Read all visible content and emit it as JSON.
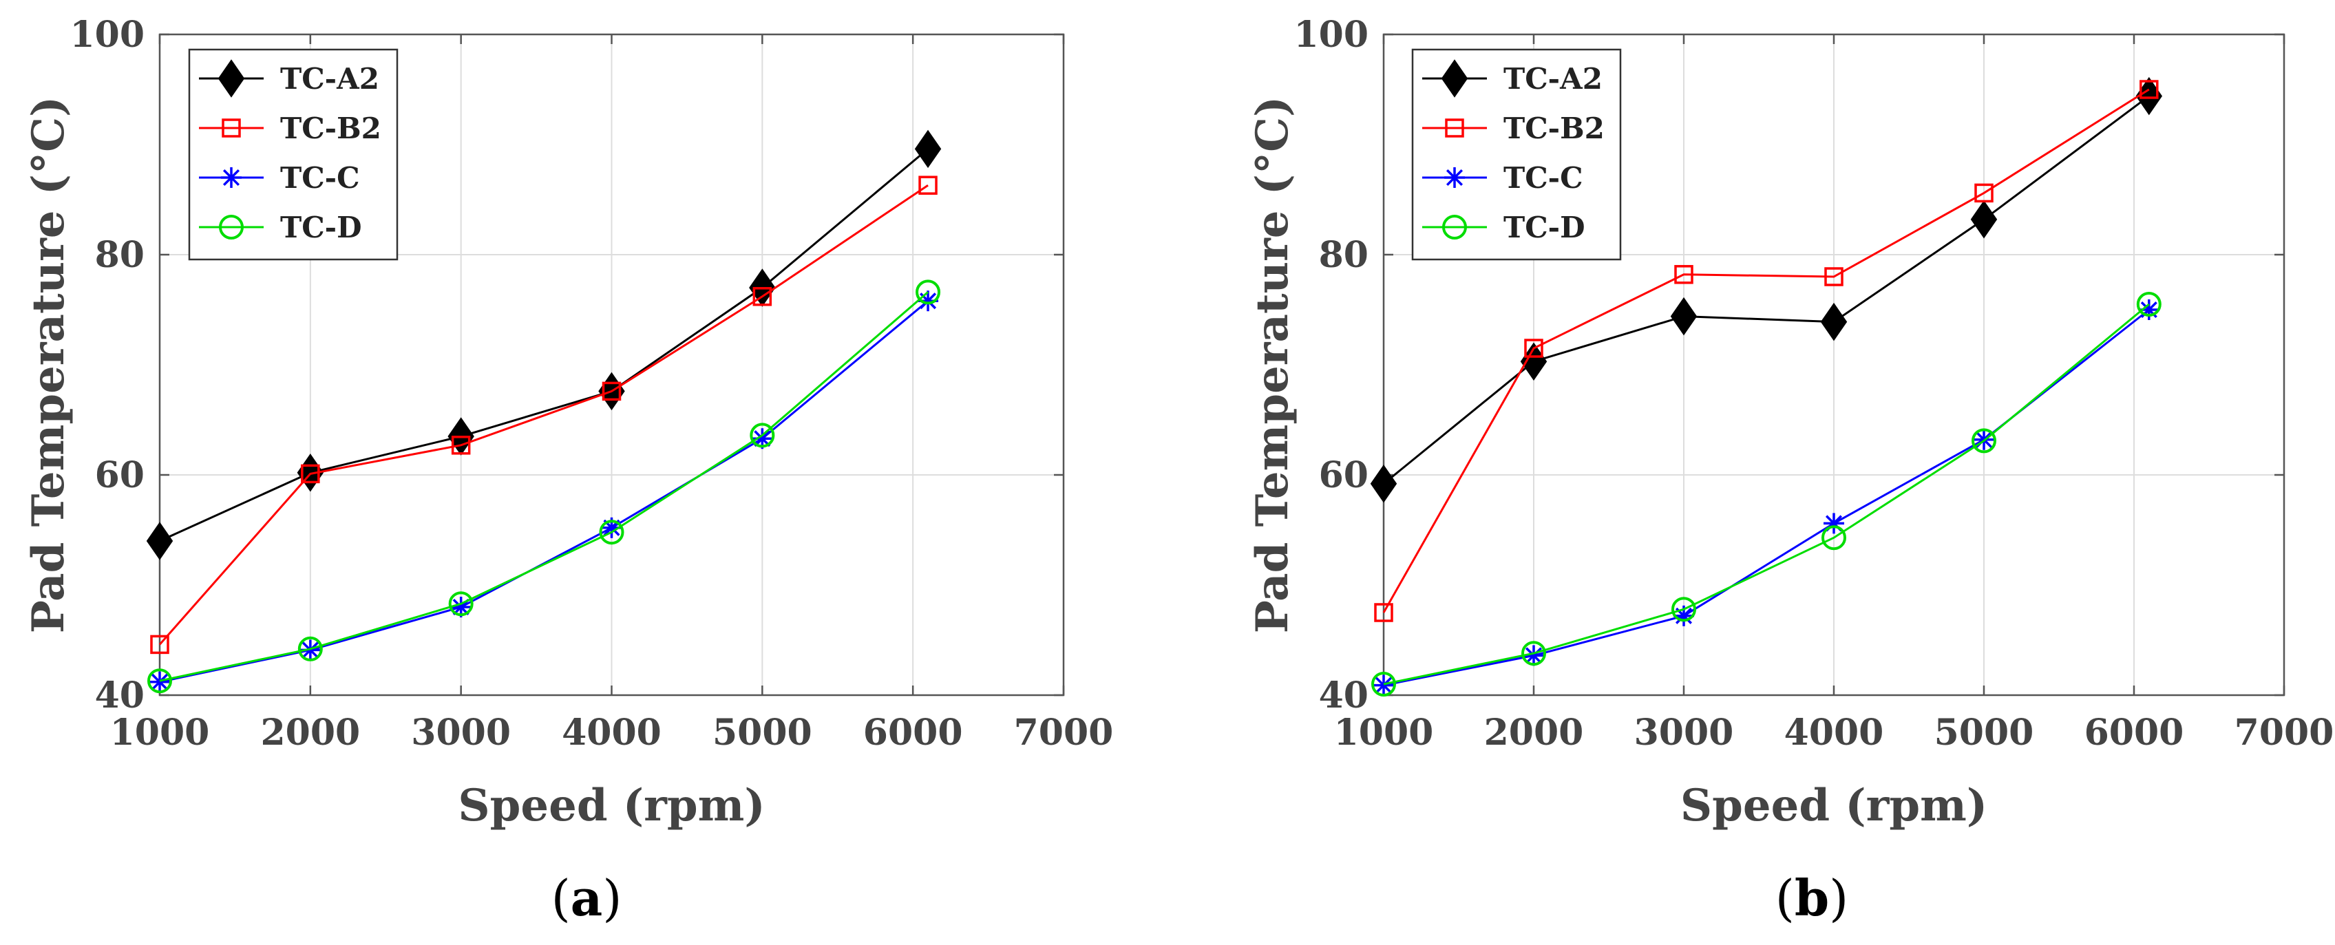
{
  "figure": {
    "captions": [
      {
        "open": "(",
        "letter": "a",
        "close": ")"
      },
      {
        "open": "(",
        "letter": "b",
        "close": ")"
      }
    ]
  },
  "colors": {
    "TC-A2": "#000000",
    "TC-B2": "#ff0000",
    "TC-C": "#0000ff",
    "TC-D": "#00dd00",
    "grid": "#dddddd",
    "axis": "#555555"
  },
  "chart_data": [
    {
      "type": "line",
      "panel": "a",
      "xlabel": "Speed (rpm)",
      "ylabel": "Pad Temperature (°C)",
      "xlim": [
        1000,
        7000
      ],
      "ylim": [
        40,
        100
      ],
      "xticks": [
        1000,
        2000,
        3000,
        4000,
        5000,
        6000,
        7000
      ],
      "yticks": [
        40,
        60,
        80,
        100
      ],
      "grid": true,
      "legend_position": "top-left",
      "x": [
        1000,
        2000,
        3000,
        4000,
        5000,
        6100
      ],
      "series": [
        {
          "name": "TC-A2",
          "marker": "diamond",
          "values": [
            54.0,
            60.2,
            63.5,
            67.6,
            77.0,
            89.6
          ]
        },
        {
          "name": "TC-B2",
          "marker": "square",
          "values": [
            44.6,
            60.1,
            62.7,
            67.6,
            76.2,
            86.3
          ]
        },
        {
          "name": "TC-C",
          "marker": "asterisk",
          "values": [
            41.2,
            44.1,
            48.0,
            55.2,
            63.3,
            75.8
          ]
        },
        {
          "name": "TC-D",
          "marker": "circle",
          "values": [
            41.3,
            44.2,
            48.3,
            54.8,
            63.6,
            76.6
          ]
        }
      ]
    },
    {
      "type": "line",
      "panel": "b",
      "xlabel": "Speed (rpm)",
      "ylabel": "Pad Temperature (°C)",
      "xlim": [
        1000,
        7000
      ],
      "ylim": [
        40,
        100
      ],
      "xticks": [
        1000,
        2000,
        3000,
        4000,
        5000,
        6000,
        7000
      ],
      "yticks": [
        40,
        60,
        80,
        100
      ],
      "grid": true,
      "legend_position": "top-left",
      "x": [
        1000,
        2000,
        3000,
        4000,
        5000,
        6100
      ],
      "series": [
        {
          "name": "TC-A2",
          "marker": "diamond",
          "values": [
            59.2,
            70.3,
            74.4,
            73.9,
            83.2,
            94.4
          ]
        },
        {
          "name": "TC-B2",
          "marker": "square",
          "values": [
            47.5,
            71.5,
            78.2,
            78.0,
            85.6,
            95.0
          ]
        },
        {
          "name": "TC-C",
          "marker": "asterisk",
          "values": [
            40.9,
            43.6,
            47.2,
            55.6,
            63.2,
            75.0
          ]
        },
        {
          "name": "TC-D",
          "marker": "circle",
          "values": [
            41.0,
            43.8,
            47.8,
            54.3,
            63.1,
            75.5
          ]
        }
      ]
    }
  ]
}
